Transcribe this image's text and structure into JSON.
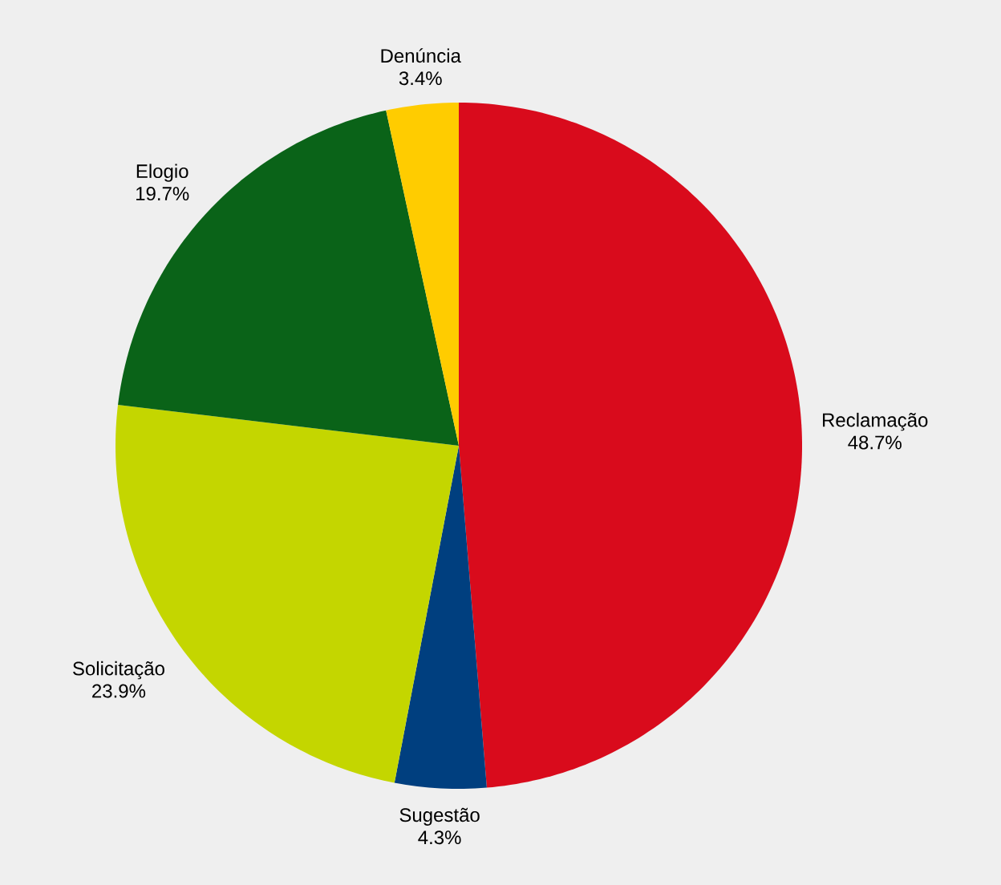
{
  "chart_data": {
    "type": "pie",
    "categories": [
      "Reclamação",
      "Sugestão",
      "Solicitação",
      "Elogio",
      "Denúncia"
    ],
    "values": [
      48.7,
      4.3,
      23.9,
      19.7,
      3.4
    ],
    "value_labels": [
      "48.7%",
      "4.3%",
      "23.9%",
      "19.7%",
      "3.4%"
    ],
    "colors": [
      "#d90b1c",
      "#003f7f",
      "#c4d600",
      "#0a6318",
      "#ffcc00"
    ]
  }
}
